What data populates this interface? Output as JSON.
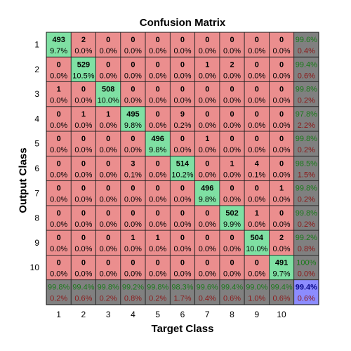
{
  "chart_data": {
    "type": "heatmap",
    "title": "Confusion Matrix",
    "xlabel": "Target Class",
    "ylabel": "Output Class",
    "x_tick_labels": [
      "1",
      "2",
      "3",
      "4",
      "5",
      "6",
      "7",
      "8",
      "9",
      "10"
    ],
    "y_tick_labels": [
      "1",
      "2",
      "3",
      "4",
      "5",
      "6",
      "7",
      "8",
      "9",
      "10"
    ],
    "counts": [
      [
        493,
        2,
        0,
        0,
        0,
        0,
        0,
        0,
        0,
        0
      ],
      [
        0,
        529,
        0,
        0,
        0,
        0,
        1,
        2,
        0,
        0
      ],
      [
        1,
        0,
        508,
        0,
        0,
        0,
        0,
        0,
        0,
        0
      ],
      [
        0,
        1,
        1,
        495,
        0,
        9,
        0,
        0,
        0,
        0
      ],
      [
        0,
        0,
        0,
        0,
        496,
        0,
        1,
        0,
        0,
        0
      ],
      [
        0,
        0,
        0,
        3,
        0,
        514,
        0,
        1,
        4,
        0
      ],
      [
        0,
        0,
        0,
        0,
        0,
        0,
        496,
        0,
        0,
        1
      ],
      [
        0,
        0,
        0,
        0,
        0,
        0,
        0,
        502,
        1,
        0
      ],
      [
        0,
        0,
        0,
        1,
        1,
        0,
        0,
        0,
        504,
        2
      ],
      [
        0,
        0,
        0,
        0,
        0,
        0,
        0,
        0,
        0,
        491
      ]
    ],
    "percents": [
      [
        "9.7%",
        "0.0%",
        "0.0%",
        "0.0%",
        "0.0%",
        "0.0%",
        "0.0%",
        "0.0%",
        "0.0%",
        "0.0%"
      ],
      [
        "0.0%",
        "10.5%",
        "0.0%",
        "0.0%",
        "0.0%",
        "0.0%",
        "0.0%",
        "0.0%",
        "0.0%",
        "0.0%"
      ],
      [
        "0.0%",
        "0.0%",
        "10.0%",
        "0.0%",
        "0.0%",
        "0.0%",
        "0.0%",
        "0.0%",
        "0.0%",
        "0.0%"
      ],
      [
        "0.0%",
        "0.0%",
        "0.0%",
        "9.8%",
        "0.0%",
        "0.2%",
        "0.0%",
        "0.0%",
        "0.0%",
        "0.0%"
      ],
      [
        "0.0%",
        "0.0%",
        "0.0%",
        "0.0%",
        "9.8%",
        "0.0%",
        "0.0%",
        "0.0%",
        "0.0%",
        "0.0%"
      ],
      [
        "0.0%",
        "0.0%",
        "0.0%",
        "0.1%",
        "0.0%",
        "10.2%",
        "0.0%",
        "0.0%",
        "0.1%",
        "0.0%"
      ],
      [
        "0.0%",
        "0.0%",
        "0.0%",
        "0.0%",
        "0.0%",
        "0.0%",
        "9.8%",
        "0.0%",
        "0.0%",
        "0.0%"
      ],
      [
        "0.0%",
        "0.0%",
        "0.0%",
        "0.0%",
        "0.0%",
        "0.0%",
        "0.0%",
        "9.9%",
        "0.0%",
        "0.0%"
      ],
      [
        "0.0%",
        "0.0%",
        "0.0%",
        "0.0%",
        "0.0%",
        "0.0%",
        "0.0%",
        "0.0%",
        "10.0%",
        "0.0%"
      ],
      [
        "0.0%",
        "0.0%",
        "0.0%",
        "0.0%",
        "0.0%",
        "0.0%",
        "0.0%",
        "0.0%",
        "0.0%",
        "9.7%"
      ]
    ],
    "row_summary": [
      [
        "99.6%",
        "0.4%"
      ],
      [
        "99.4%",
        "0.6%"
      ],
      [
        "99.8%",
        "0.2%"
      ],
      [
        "97.8%",
        "2.2%"
      ],
      [
        "99.8%",
        "0.2%"
      ],
      [
        "98.5%",
        "1.5%"
      ],
      [
        "99.8%",
        "0.2%"
      ],
      [
        "99.8%",
        "0.2%"
      ],
      [
        "99.2%",
        "0.8%"
      ],
      [
        "100%",
        "0.0%"
      ]
    ],
    "col_summary": [
      [
        "99.8%",
        "0.2%"
      ],
      [
        "99.4%",
        "0.6%"
      ],
      [
        "99.8%",
        "0.2%"
      ],
      [
        "99.2%",
        "0.8%"
      ],
      [
        "99.8%",
        "0.2%"
      ],
      [
        "98.3%",
        "1.7%"
      ],
      [
        "99.6%",
        "0.4%"
      ],
      [
        "99.4%",
        "0.6%"
      ],
      [
        "99.0%",
        "1.0%"
      ],
      [
        "99.4%",
        "0.6%"
      ]
    ],
    "overall": [
      "99.4%",
      "0.6%"
    ],
    "colors": {
      "correct": "#7fe0a3",
      "incorrect": "#eb8e8e",
      "summary": "#808080",
      "overall": "#8c8cff",
      "summary_good_text": "#1a7a1a",
      "summary_bad_text": "#8b1a1a",
      "overall_good_text": "#0a0a8a",
      "overall_bad_text": "#8b1a1a"
    }
  }
}
